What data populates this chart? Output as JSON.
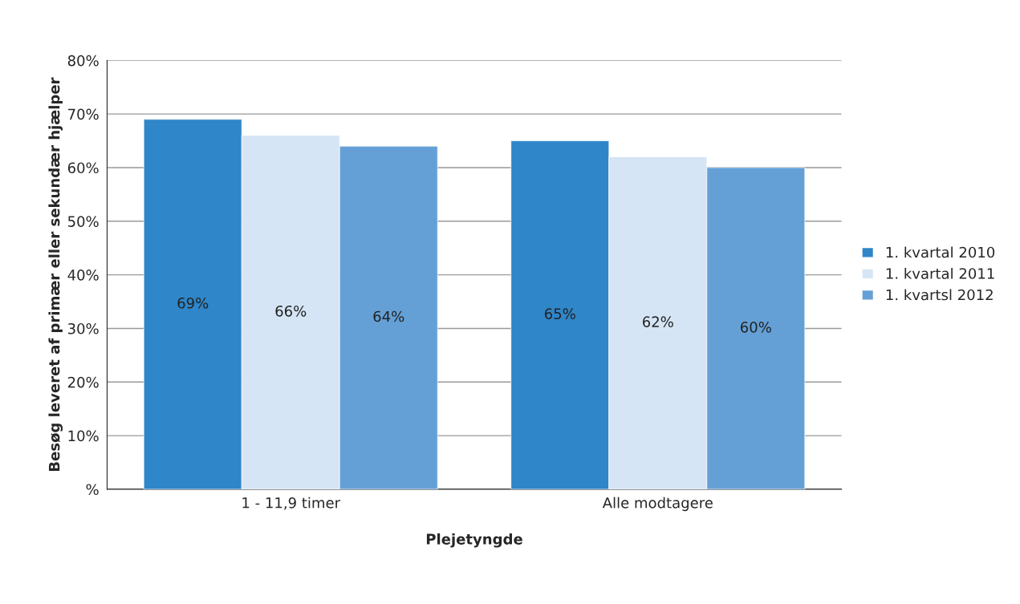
{
  "chart_data": {
    "type": "bar",
    "xlabel": "Plejetyngde",
    "ylabel": "Besøg leveret af primær eller sekundær hjælper",
    "categories": [
      "1 - 11,9 timer",
      "Alle modtagere"
    ],
    "series": [
      {
        "name": "1. kvartal 2010",
        "color": "#2f86c8",
        "values": [
          69,
          65
        ],
        "value_labels": [
          "69%",
          "65%"
        ]
      },
      {
        "name": "1. kvartal 2011",
        "color": "#d5e5f5",
        "values": [
          66,
          62
        ],
        "value_labels": [
          "66%",
          "62%"
        ]
      },
      {
        "name": "1. kvartsl 2012",
        "color": "#64a0d6",
        "values": [
          64,
          60
        ],
        "value_labels": [
          "64%",
          "60%"
        ]
      }
    ],
    "ylim": [
      0,
      80
    ],
    "yticks": [
      {
        "value": 0,
        "label": "%"
      },
      {
        "value": 10,
        "label": "10%"
      },
      {
        "value": 20,
        "label": "20%"
      },
      {
        "value": 30,
        "label": "30%"
      },
      {
        "value": 40,
        "label": "40%"
      },
      {
        "value": 50,
        "label": "50%"
      },
      {
        "value": 60,
        "label": "60%"
      },
      {
        "value": 70,
        "label": "70%"
      },
      {
        "value": 80,
        "label": "80%"
      }
    ],
    "grid": "y",
    "legend": "right"
  }
}
